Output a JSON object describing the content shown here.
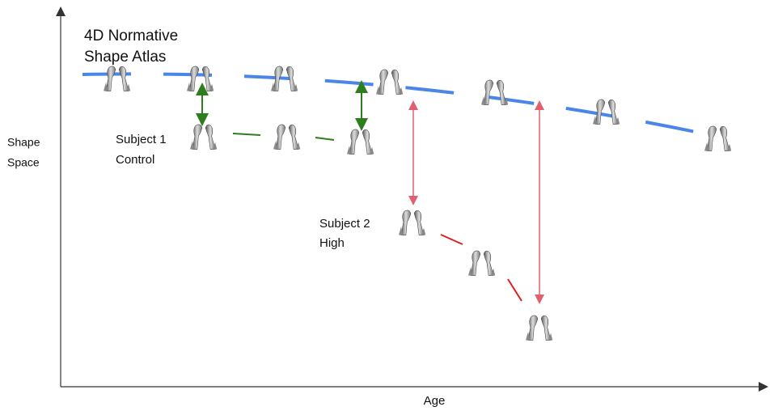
{
  "atlas": {
    "label": [
      "4D Normative",
      "Shape Atlas"
    ]
  },
  "axes": {
    "y_label": [
      "Shape",
      "Space"
    ],
    "x_label": "Age"
  },
  "subjects": [
    {
      "label": [
        "Subject 1",
        "Control"
      ]
    },
    {
      "label": [
        "Subject 2",
        "High"
      ]
    }
  ]
}
